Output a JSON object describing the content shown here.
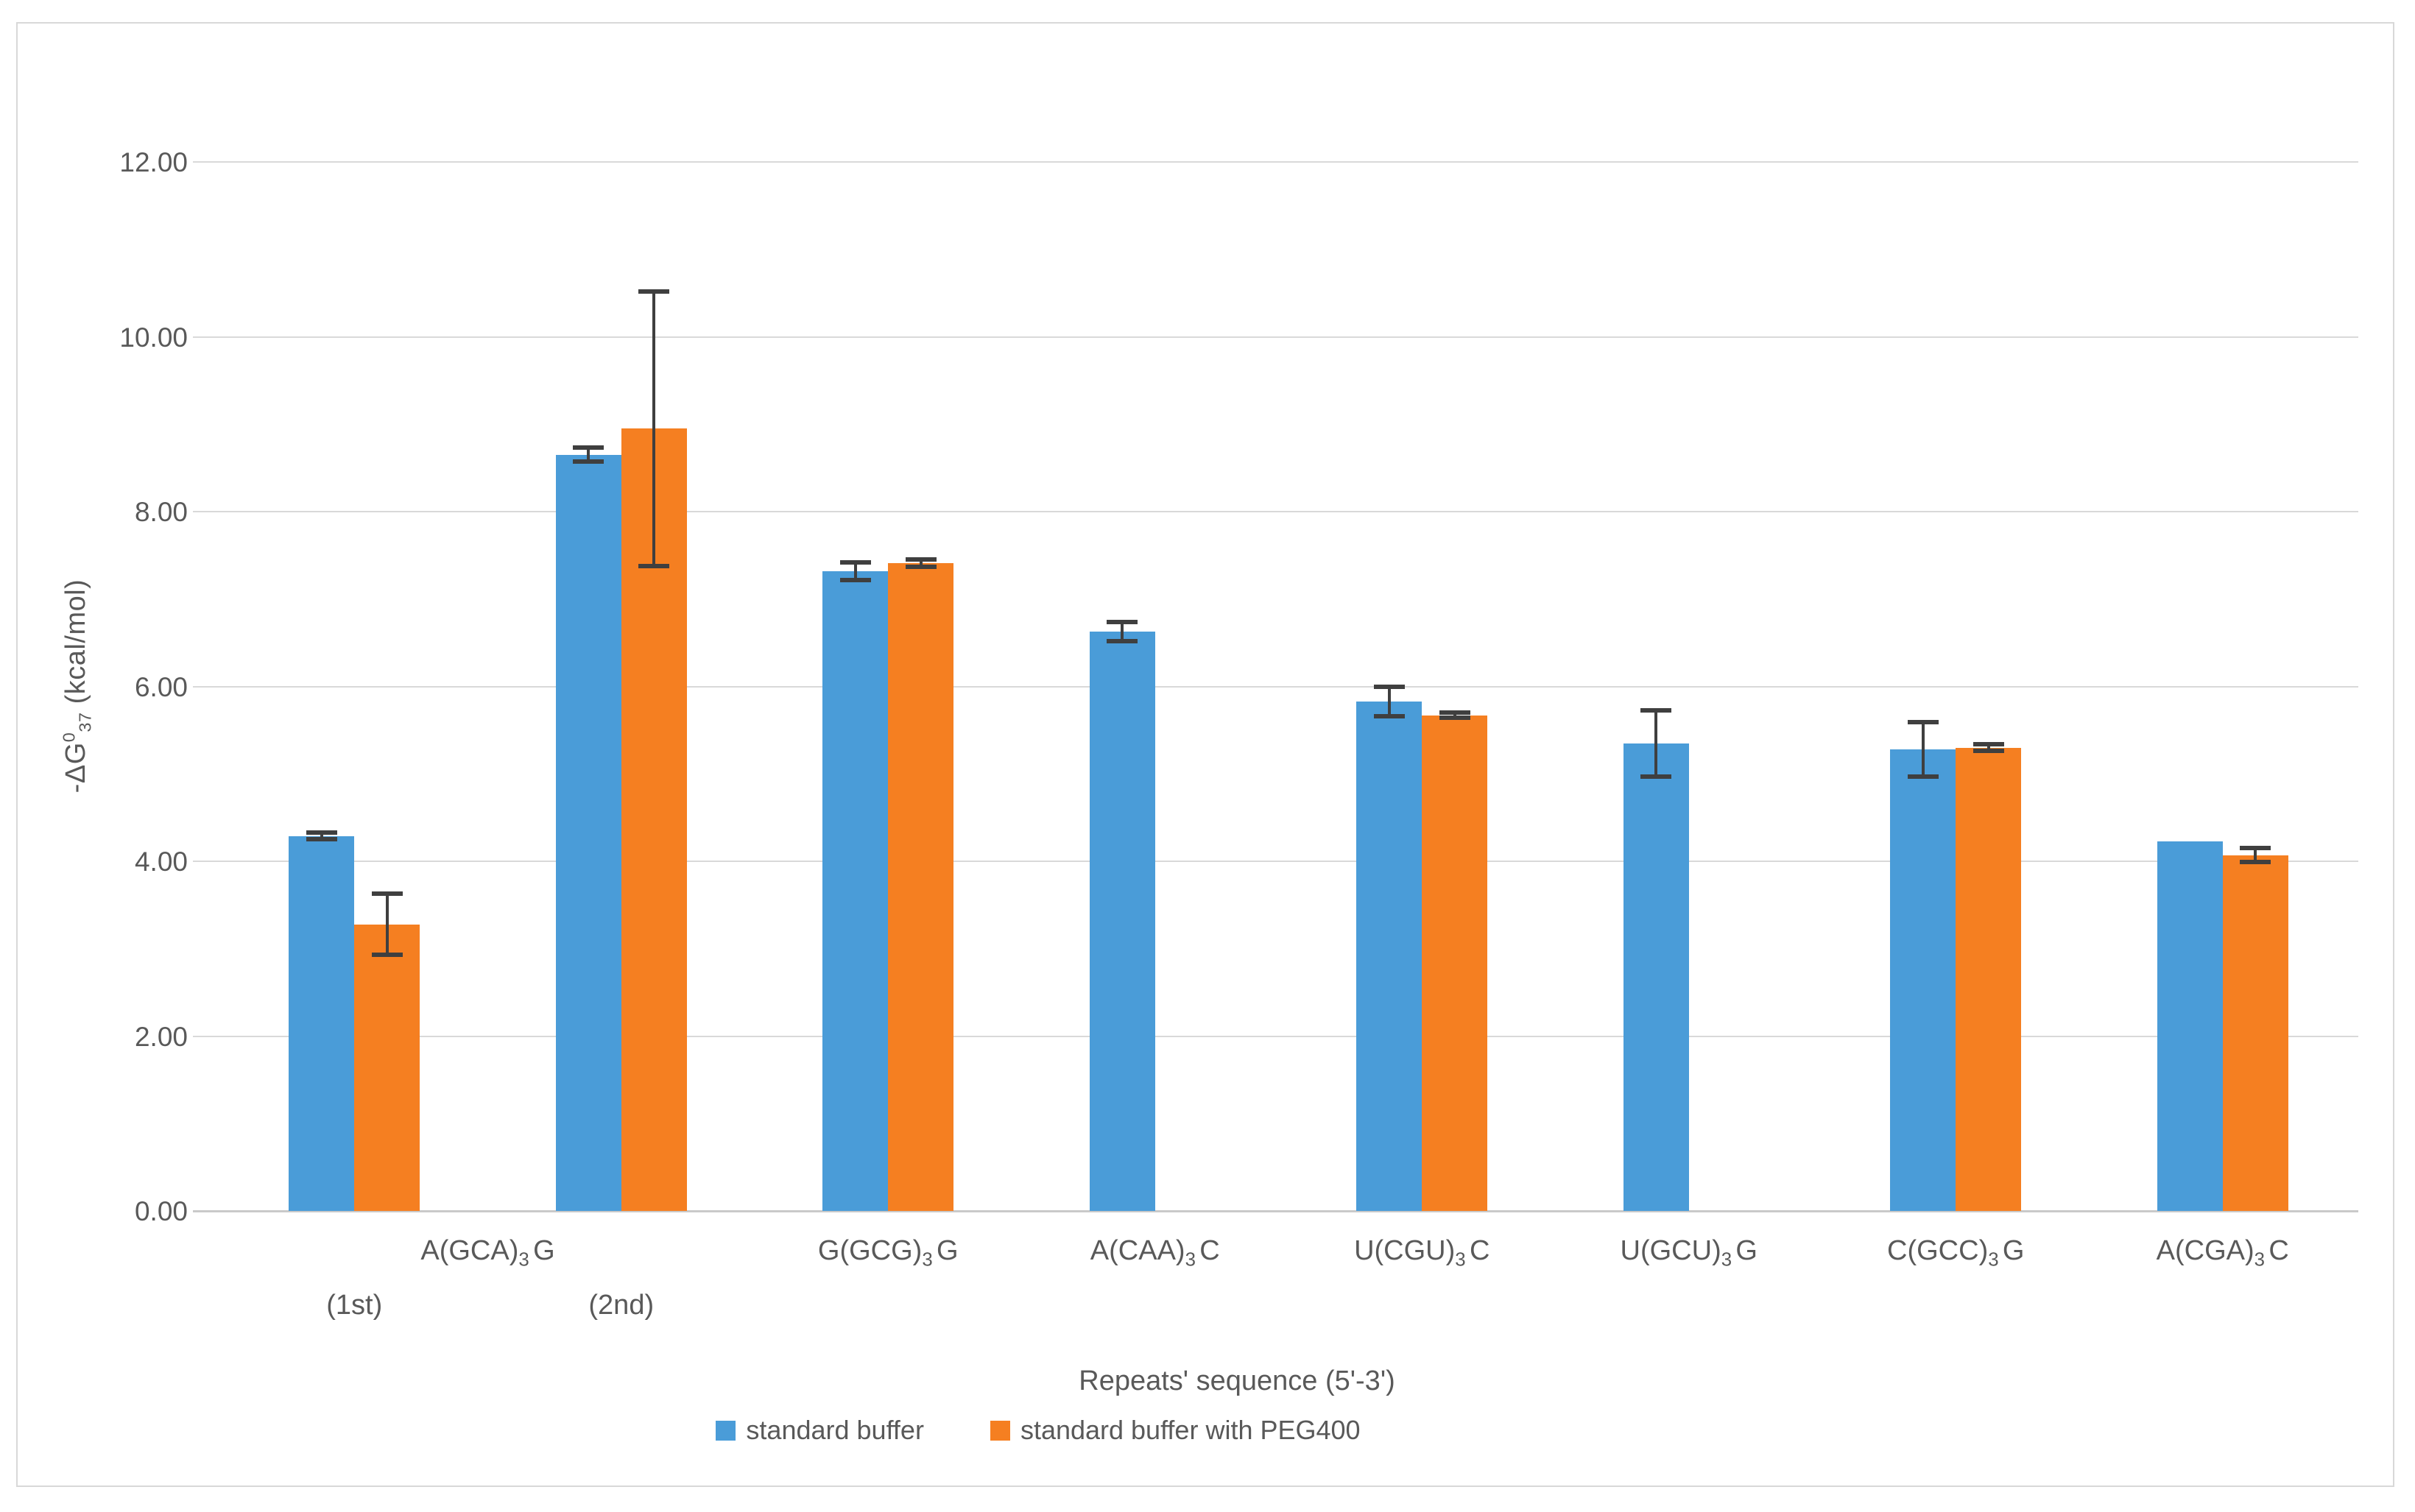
{
  "colors": {
    "standard_buffer": "#4A9CD8",
    "peg400": "#F57F21",
    "error_bar": "#3F3F3F",
    "gridline": "#D9D9D9",
    "axis_line": "#C9C9C9",
    "text": "#595959",
    "border": "#D8D8D8"
  },
  "chart_data": {
    "type": "bar",
    "title": "",
    "xlabel": "Repeats' sequence (5'-3')",
    "ylabel_parts": {
      "pre": "-ΔG",
      "sup": "0",
      "sub": "37",
      "post": " (kcal/mol)"
    },
    "ylim": [
      0,
      12
    ],
    "ytick_step": 2,
    "yticks": [
      "12.00",
      "10.00",
      "8.00",
      "6.00",
      "4.00",
      "2.00",
      "0.00"
    ],
    "grid": true,
    "legend_position": "bottom",
    "group_span_label": {
      "pre": "A(GCA)",
      "sub": "3",
      "post": "G",
      "spans_slots": [
        0,
        1
      ]
    },
    "categories": [
      {
        "label_parts": null,
        "note": "(1st)"
      },
      {
        "label_parts": null,
        "note": "(2nd)"
      },
      {
        "label_parts": {
          "pre": "G(GCG)",
          "sub": "3",
          "post": "G"
        },
        "note": null
      },
      {
        "label_parts": {
          "pre": "A(CAA)",
          "sub": "3",
          "post": "C"
        },
        "note": null
      },
      {
        "label_parts": {
          "pre": "U(CGU)",
          "sub": "3",
          "post": "C"
        },
        "note": null
      },
      {
        "label_parts": {
          "pre": "U(GCU)",
          "sub": "3",
          "post": "G"
        },
        "note": null
      },
      {
        "label_parts": {
          "pre": "C(GCC)",
          "sub": "3",
          "post": "G"
        },
        "note": null
      },
      {
        "label_parts": {
          "pre": "A(CGA)",
          "sub": "3",
          "post": "C"
        },
        "note": null
      }
    ],
    "series": [
      {
        "name": "standard buffer",
        "color_key": "standard_buffer",
        "values": [
          4.29,
          8.65,
          7.32,
          6.63,
          5.83,
          5.35,
          5.28,
          4.23
        ],
        "errors": [
          0.04,
          0.08,
          0.1,
          0.11,
          0.17,
          0.38,
          0.31,
          null
        ]
      },
      {
        "name": "standard buffer with PEG400",
        "color_key": "peg400",
        "values": [
          3.28,
          8.95,
          7.41,
          null,
          5.67,
          null,
          5.3,
          4.07
        ],
        "errors": [
          0.35,
          1.57,
          0.04,
          null,
          0.03,
          null,
          0.04,
          0.08
        ]
      }
    ]
  }
}
